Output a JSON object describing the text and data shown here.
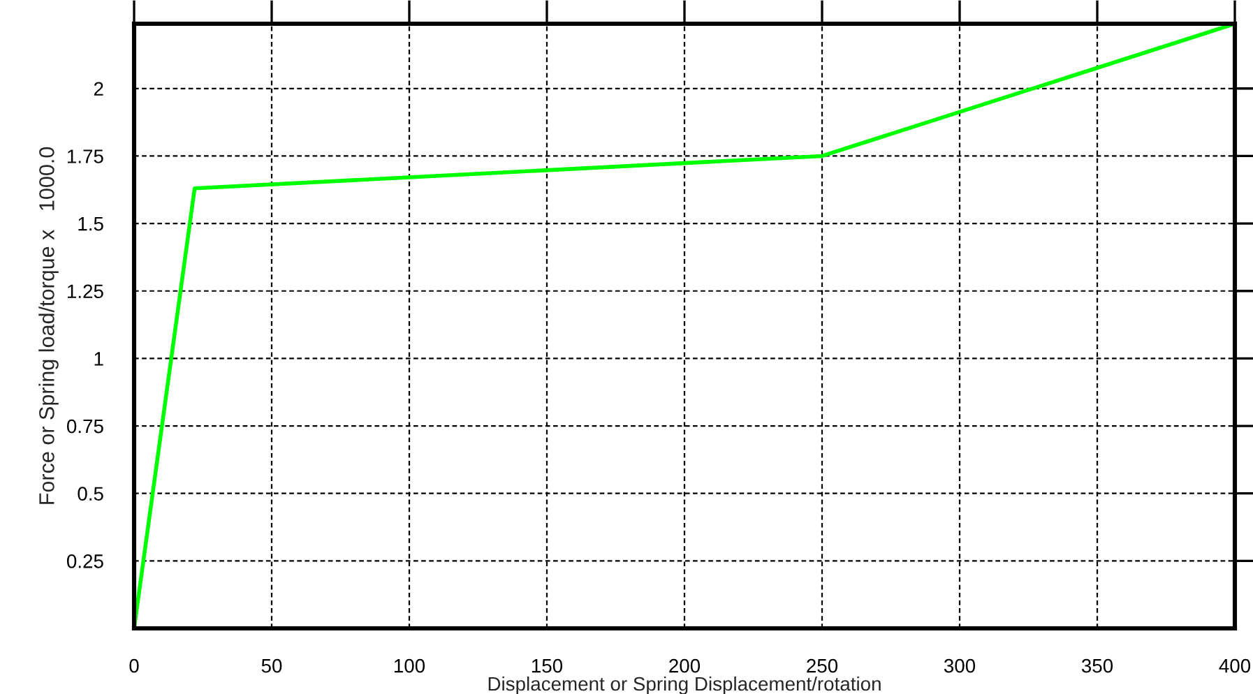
{
  "chart_data": {
    "type": "line",
    "xlabel": "Displacement or Spring Displacement/rotation",
    "ylabel": "Force or Spring load/torque x   1000.0",
    "x": [
      0,
      22,
      250,
      400
    ],
    "series": [
      {
        "color": "#00ff00",
        "values": [
          0,
          1.63,
          1.75,
          2.24
        ]
      }
    ],
    "xlim": [
      0,
      400
    ],
    "xticks": [
      0,
      50,
      100,
      150,
      200,
      250,
      300,
      350,
      400
    ],
    "ylim": [
      0,
      2.24
    ],
    "yticks": [
      0.25,
      0.5,
      0.75,
      1,
      1.25,
      1.5,
      1.75,
      2
    ],
    "grid": true,
    "line_style": "solid",
    "marker": "none",
    "legend": false
  }
}
